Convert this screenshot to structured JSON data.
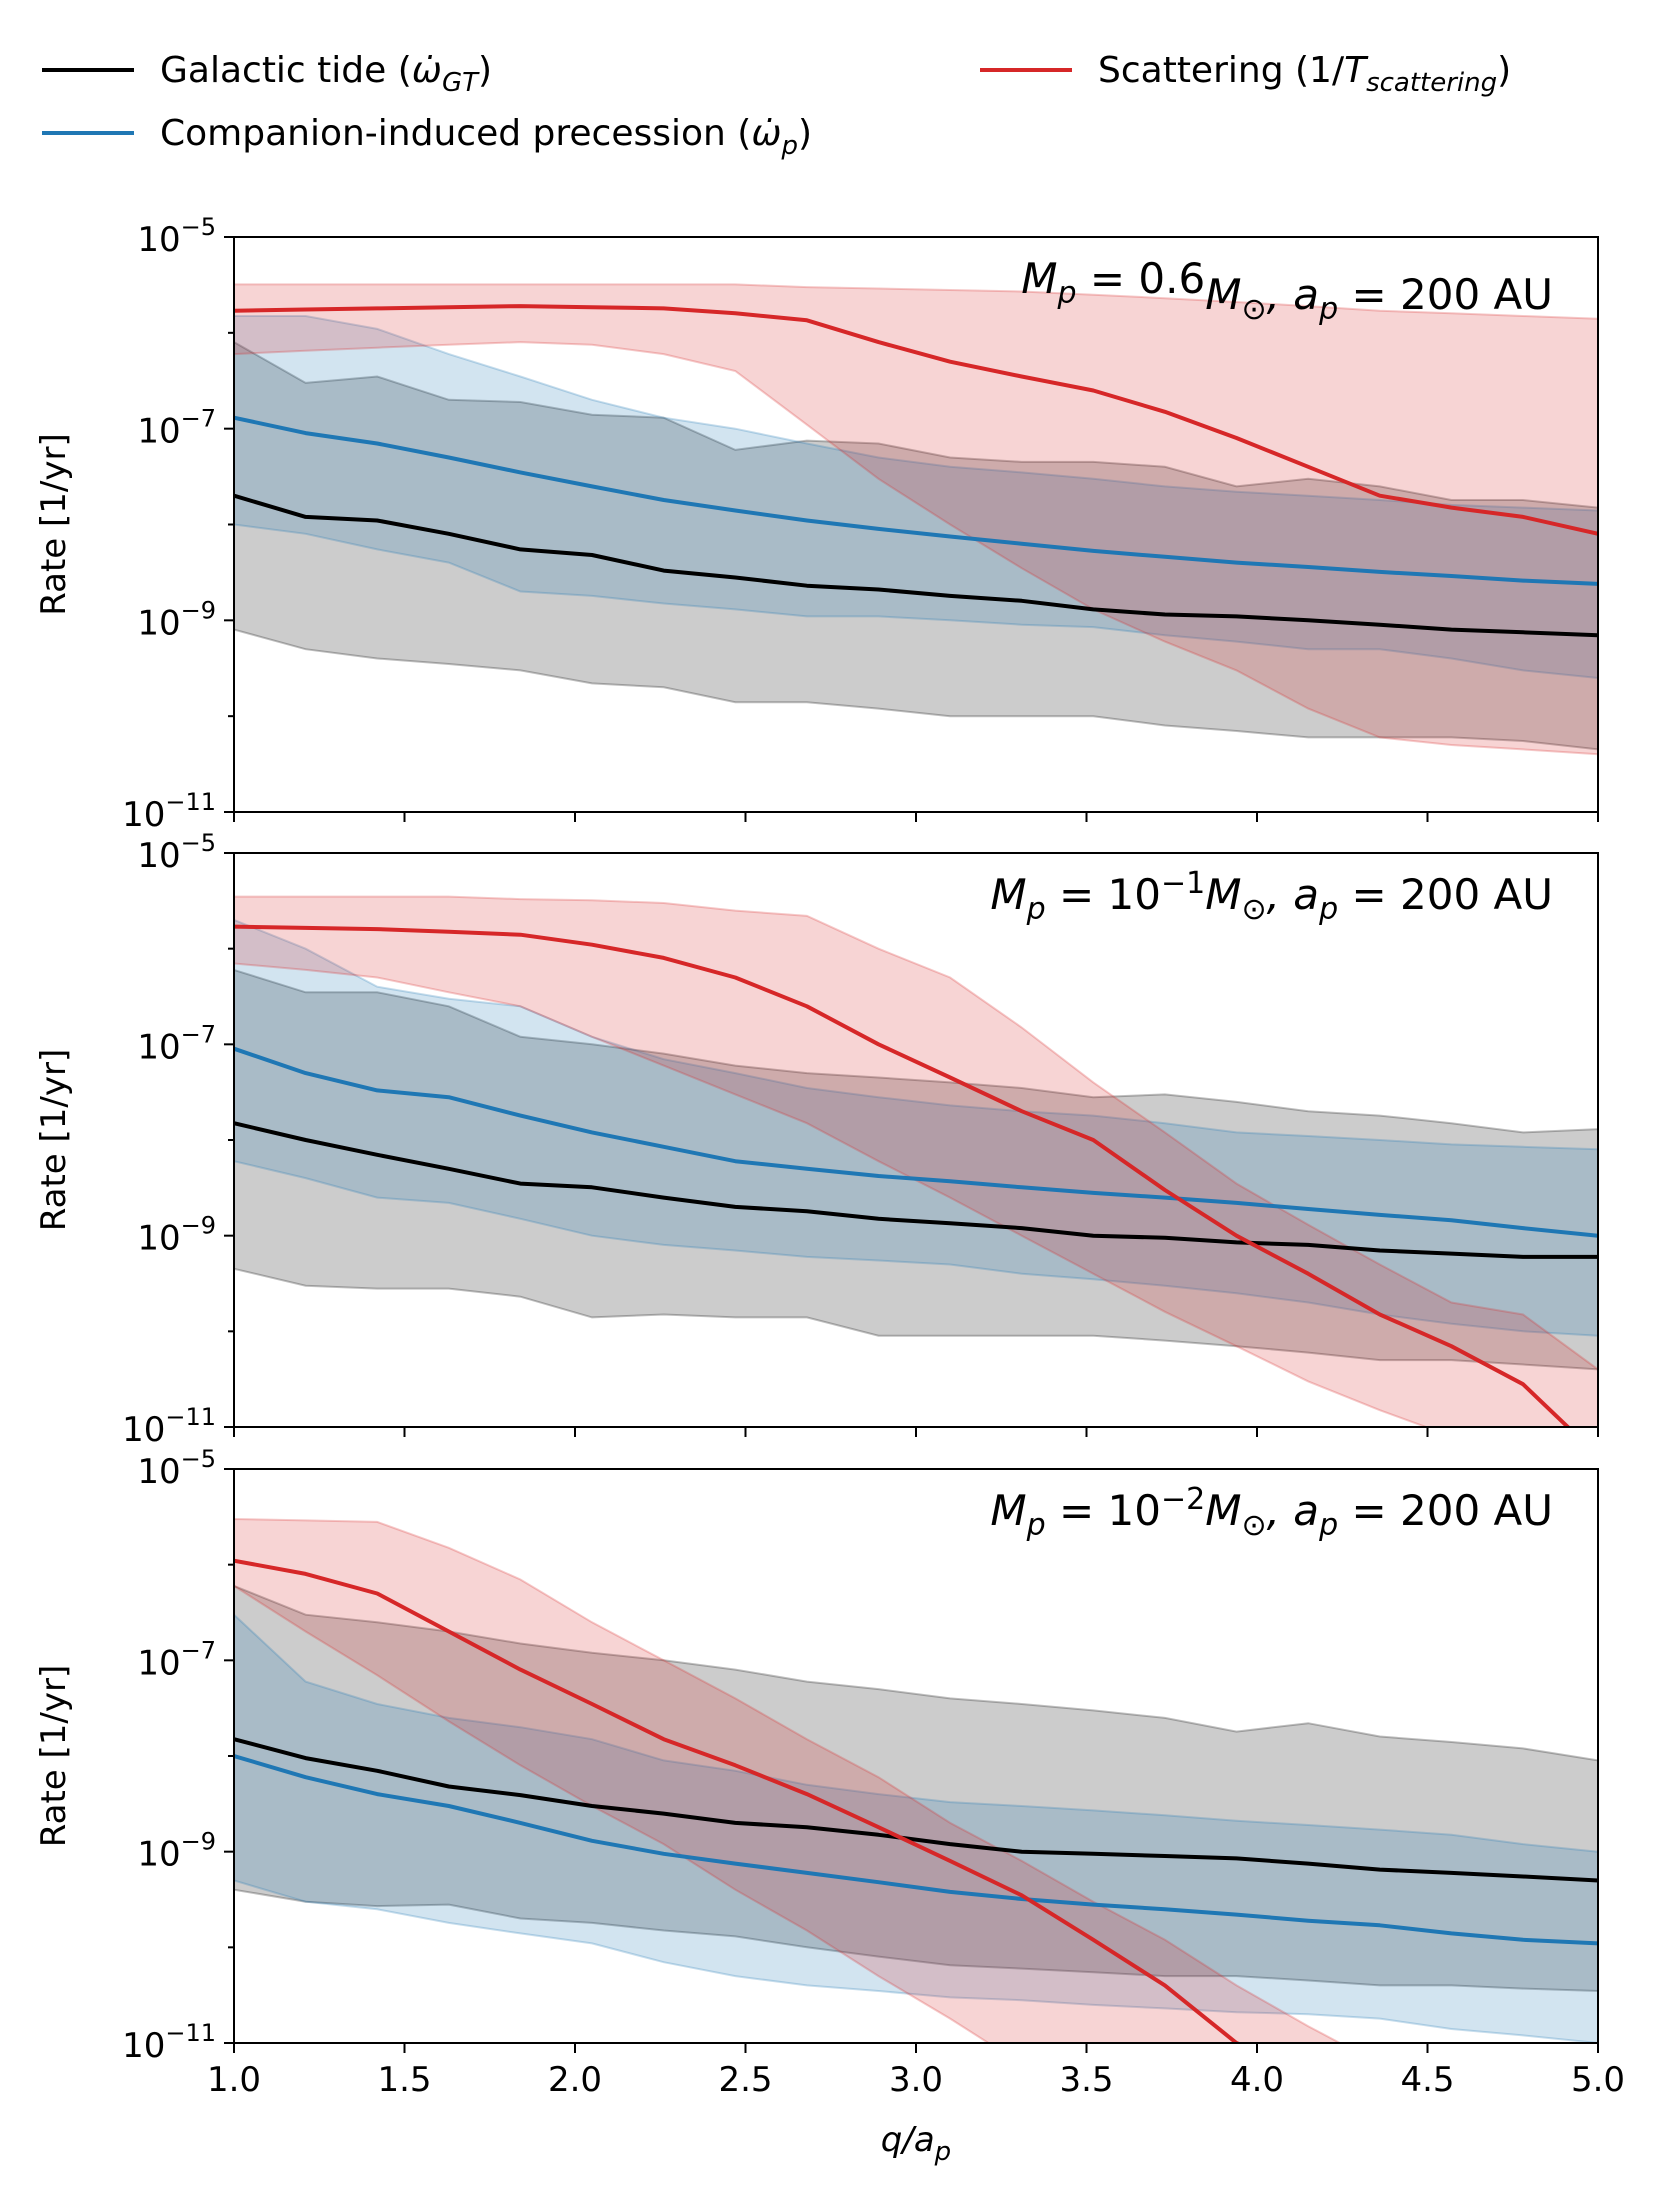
{
  "legend": [
    {
      "series": "gt",
      "base": "Galactic tide (",
      "sym": "ω̇",
      "sub": "GT",
      "close": ")",
      "color": "#000000"
    },
    {
      "series": "comp",
      "base": "Companion-induced precession (",
      "sym": "ω̇",
      "sub": "p",
      "close": ")",
      "color": "#1f77b4"
    },
    {
      "series": "scat",
      "base": "Scattering (1/",
      "sym": "T",
      "sub": "scattering",
      "close": ")",
      "color": "#d62728"
    }
  ],
  "colors": {
    "gt": "#000000",
    "comp": "#1f77b4",
    "scat": "#d62728"
  },
  "chart_data": [
    {
      "type": "line",
      "title": "",
      "annotation": {
        "prefix": "M",
        "prefix_sub": "p",
        "value": " = 0.6",
        "mass_sym": "M",
        "mass_sub": "⊙",
        "exp": "",
        "rest": ", a",
        "rest_sub": "p",
        "tail": " = 200 AU"
      },
      "xlabel": "",
      "ylabel": "Rate [1/yr]",
      "xlim": [
        1.0,
        5.0
      ],
      "ylim_log10": [
        -11,
        -5
      ],
      "x": [
        1.0,
        1.21,
        1.42,
        1.63,
        1.84,
        2.05,
        2.26,
        2.47,
        2.68,
        2.89,
        3.1,
        3.31,
        3.52,
        3.73,
        3.94,
        4.15,
        4.36,
        4.57,
        4.78,
        5.0
      ],
      "series": [
        {
          "name": "Galactic tide",
          "key": "gt",
          "median": [
            2e-08,
            1.2e-08,
            1.1e-08,
            8e-09,
            5.5e-09,
            4.8e-09,
            3.3e-09,
            2.8e-09,
            2.3e-09,
            2.1e-09,
            1.8e-09,
            1.6e-09,
            1.3e-09,
            1.15e-09,
            1.1e-09,
            1e-09,
            9e-10,
            8e-10,
            7.5e-10,
            7e-10
          ],
          "lower": [
            8e-10,
            5e-10,
            4e-10,
            3.5e-10,
            3e-10,
            2.2e-10,
            2e-10,
            1.4e-10,
            1.4e-10,
            1.2e-10,
            1e-10,
            1e-10,
            1e-10,
            8e-11,
            7e-11,
            6e-11,
            6e-11,
            6e-11,
            5.5e-11,
            4.5e-11
          ],
          "upper": [
            8e-07,
            3e-07,
            3.5e-07,
            2e-07,
            1.9e-07,
            1.4e-07,
            1.3e-07,
            6e-08,
            7.5e-08,
            7e-08,
            5e-08,
            4.5e-08,
            4.5e-08,
            4e-08,
            2.5e-08,
            3e-08,
            2.5e-08,
            1.8e-08,
            1.8e-08,
            1.5e-08
          ]
        },
        {
          "name": "Companion-induced precession",
          "key": "comp",
          "median": [
            1.3e-07,
            9e-08,
            7e-08,
            5e-08,
            3.5e-08,
            2.5e-08,
            1.8e-08,
            1.4e-08,
            1.1e-08,
            9e-09,
            7.5e-09,
            6.3e-09,
            5.3e-09,
            4.6e-09,
            4e-09,
            3.6e-09,
            3.2e-09,
            2.9e-09,
            2.6e-09,
            2.4e-09
          ],
          "lower": [
            1e-08,
            8e-09,
            5.5e-09,
            4e-09,
            2e-09,
            1.8e-09,
            1.5e-09,
            1.3e-09,
            1.1e-09,
            1.1e-09,
            1e-09,
            9e-10,
            8.5e-10,
            7e-10,
            6e-10,
            5e-10,
            5e-10,
            4e-10,
            3e-10,
            2.5e-10
          ],
          "upper": [
            1.5e-06,
            1.5e-06,
            1.1e-06,
            6e-07,
            3.5e-07,
            2e-07,
            1.3e-07,
            1e-07,
            7e-08,
            5e-08,
            4e-08,
            3.5e-08,
            3e-08,
            2.5e-08,
            2.2e-08,
            2e-08,
            1.8e-08,
            1.6e-08,
            1.5e-08,
            1.4e-08
          ]
        },
        {
          "name": "Scattering",
          "key": "scat",
          "median": [
            1.7e-06,
            1.75e-06,
            1.8e-06,
            1.85e-06,
            1.9e-06,
            1.85e-06,
            1.8e-06,
            1.6e-06,
            1.35e-06,
            8e-07,
            5e-07,
            3.5e-07,
            2.5e-07,
            1.5e-07,
            8e-08,
            4e-08,
            2e-08,
            1.5e-08,
            1.2e-08,
            8e-09
          ],
          "lower": [
            6e-07,
            6.5e-07,
            7e-07,
            7.5e-07,
            8e-07,
            7.5e-07,
            6e-07,
            4e-07,
            1.1e-07,
            3e-08,
            1e-08,
            3.5e-09,
            1.3e-09,
            6e-10,
            3e-10,
            1.2e-10,
            6e-11,
            5e-11,
            4.5e-11,
            4e-11
          ],
          "upper": [
            3.2e-06,
            3.2e-06,
            3.2e-06,
            3.2e-06,
            3.2e-06,
            3.2e-06,
            3.2e-06,
            3.2e-06,
            3e-06,
            2.9e-06,
            2.8e-06,
            2.7e-06,
            2.5e-06,
            2.3e-06,
            2.1e-06,
            1.9e-06,
            1.7e-06,
            1.6e-06,
            1.5e-06,
            1.4e-06
          ]
        }
      ]
    },
    {
      "type": "line",
      "title": "",
      "annotation": {
        "prefix": "M",
        "prefix_sub": "p",
        "value": " = 10",
        "mass_sym": "M",
        "mass_sub": "⊙",
        "exp": "−1",
        "rest": ", a",
        "rest_sub": "p",
        "tail": " = 200 AU"
      },
      "xlabel": "",
      "ylabel": "Rate [1/yr]",
      "xlim": [
        1.0,
        5.0
      ],
      "ylim_log10": [
        -11,
        -5
      ],
      "x": [
        1.0,
        1.21,
        1.42,
        1.63,
        1.84,
        2.05,
        2.26,
        2.47,
        2.68,
        2.89,
        3.1,
        3.31,
        3.52,
        3.73,
        3.94,
        4.15,
        4.36,
        4.57,
        4.78,
        5.0
      ],
      "series": [
        {
          "name": "Galactic tide",
          "key": "gt",
          "median": [
            1.5e-08,
            1e-08,
            7e-09,
            5e-09,
            3.5e-09,
            3.2e-09,
            2.5e-09,
            2e-09,
            1.8e-09,
            1.5e-09,
            1.35e-09,
            1.2e-09,
            1e-09,
            9.5e-10,
            8.5e-10,
            8e-10,
            7e-10,
            6.5e-10,
            6e-10,
            6e-10
          ],
          "lower": [
            4.5e-10,
            3e-10,
            2.8e-10,
            2.8e-10,
            2.3e-10,
            1.4e-10,
            1.5e-10,
            1.4e-10,
            1.4e-10,
            9e-11,
            9e-11,
            9e-11,
            9e-11,
            8e-11,
            7e-11,
            6e-11,
            5e-11,
            5e-11,
            4.5e-11,
            4e-11
          ],
          "upper": [
            6e-07,
            3.5e-07,
            3.5e-07,
            2.5e-07,
            1.2e-07,
            1e-07,
            8e-08,
            6e-08,
            5e-08,
            4.5e-08,
            4e-08,
            3.5e-08,
            2.8e-08,
            3e-08,
            2.5e-08,
            2e-08,
            1.8e-08,
            1.5e-08,
            1.2e-08,
            1.3e-08
          ]
        },
        {
          "name": "Companion-induced precession",
          "key": "comp",
          "median": [
            9e-08,
            5e-08,
            3.3e-08,
            2.8e-08,
            1.8e-08,
            1.2e-08,
            8.5e-09,
            6e-09,
            5e-09,
            4.2e-09,
            3.7e-09,
            3.2e-09,
            2.8e-09,
            2.5e-09,
            2.2e-09,
            1.9e-09,
            1.65e-09,
            1.45e-09,
            1.2e-09,
            1e-09
          ],
          "lower": [
            6e-09,
            4e-09,
            2.5e-09,
            2.2e-09,
            1.5e-09,
            1e-09,
            8e-10,
            7e-10,
            6e-10,
            5.5e-10,
            5e-10,
            4e-10,
            3.5e-10,
            3e-10,
            2.5e-10,
            2e-10,
            1.5e-10,
            1.2e-10,
            1e-10,
            9e-11
          ],
          "upper": [
            2e-06,
            1e-06,
            4e-07,
            3e-07,
            2.5e-07,
            1.2e-07,
            7e-08,
            5e-08,
            3.5e-08,
            2.8e-08,
            2.3e-08,
            2e-08,
            1.8e-08,
            1.5e-08,
            1.2e-08,
            1.1e-08,
            1e-08,
            9e-09,
            8.5e-09,
            8e-09
          ]
        },
        {
          "name": "Scattering",
          "key": "scat",
          "median": [
            1.7e-06,
            1.65e-06,
            1.6e-06,
            1.5e-06,
            1.4e-06,
            1.1e-06,
            8e-07,
            5e-07,
            2.5e-07,
            1e-07,
            4.5e-08,
            2e-08,
            1e-08,
            3e-09,
            1e-09,
            4e-10,
            1.5e-10,
            7e-11,
            2.8e-11,
            5e-12
          ],
          "lower": [
            7e-07,
            6e-07,
            5e-07,
            3.5e-07,
            2.5e-07,
            1.2e-07,
            6e-08,
            3e-08,
            1.5e-08,
            6e-09,
            2.5e-09,
            1e-09,
            4e-10,
            1.6e-10,
            7e-11,
            3e-11,
            1.5e-11,
            8e-12,
            5e-12,
            3e-12
          ],
          "upper": [
            3.5e-06,
            3.5e-06,
            3.5e-06,
            3.5e-06,
            3.3e-06,
            3.2e-06,
            3e-06,
            2.5e-06,
            2.2e-06,
            1e-06,
            5e-07,
            1.5e-07,
            4e-08,
            1.2e-08,
            3.5e-09,
            1.3e-09,
            5e-10,
            2e-10,
            1.5e-10,
            4e-11
          ]
        }
      ]
    },
    {
      "type": "line",
      "title": "",
      "annotation": {
        "prefix": "M",
        "prefix_sub": "p",
        "value": " = 10",
        "mass_sym": "M",
        "mass_sub": "⊙",
        "exp": "−2",
        "rest": ", a",
        "rest_sub": "p",
        "tail": " = 200 AU"
      },
      "xlabel": "q/a_p",
      "ylabel": "Rate [1/yr]",
      "xlim": [
        1.0,
        5.0
      ],
      "ylim_log10": [
        -11,
        -5
      ],
      "x": [
        1.0,
        1.21,
        1.42,
        1.63,
        1.84,
        2.05,
        2.26,
        2.47,
        2.68,
        2.89,
        3.1,
        3.31,
        3.52,
        3.73,
        3.94,
        4.15,
        4.36,
        4.57,
        4.78,
        5.0
      ],
      "series": [
        {
          "name": "Galactic tide",
          "key": "gt",
          "median": [
            1.5e-08,
            9.5e-09,
            7e-09,
            4.8e-09,
            3.9e-09,
            3e-09,
            2.5e-09,
            2e-09,
            1.8e-09,
            1.5e-09,
            1.2e-09,
            1e-09,
            9.5e-10,
            9e-10,
            8.5e-10,
            7.5e-10,
            6.5e-10,
            6e-10,
            5.5e-10,
            5e-10
          ],
          "lower": [
            4e-10,
            3e-10,
            2.7e-10,
            2.8e-10,
            2e-10,
            1.8e-10,
            1.5e-10,
            1.3e-10,
            1e-10,
            8e-11,
            6.5e-11,
            6e-11,
            5.5e-11,
            5e-11,
            5e-11,
            4.5e-11,
            4e-11,
            4e-11,
            3.7e-11,
            3.5e-11
          ],
          "upper": [
            6e-07,
            3e-07,
            2.5e-07,
            2e-07,
            1.5e-07,
            1.2e-07,
            1e-07,
            8e-08,
            6e-08,
            5e-08,
            4e-08,
            3.5e-08,
            3e-08,
            2.5e-08,
            1.8e-08,
            2.2e-08,
            1.6e-08,
            1.4e-08,
            1.2e-08,
            9e-09
          ]
        },
        {
          "name": "Companion-induced precession",
          "key": "comp",
          "median": [
            1e-08,
            6e-09,
            4e-09,
            3e-09,
            2e-09,
            1.3e-09,
            9.5e-10,
            7.5e-10,
            6e-10,
            4.8e-10,
            3.8e-10,
            3.2e-10,
            2.8e-10,
            2.5e-10,
            2.2e-10,
            1.9e-10,
            1.7e-10,
            1.4e-10,
            1.2e-10,
            1.1e-10
          ],
          "lower": [
            5e-10,
            3e-10,
            2.5e-10,
            1.8e-10,
            1.4e-10,
            1.1e-10,
            7e-11,
            5e-11,
            4e-11,
            3.5e-11,
            3e-11,
            2.8e-11,
            2.5e-11,
            2.3e-11,
            2.1e-11,
            2e-11,
            1.8e-11,
            1.4e-11,
            1.2e-11,
            1e-11
          ],
          "upper": [
            3e-07,
            6e-08,
            3.5e-08,
            2.5e-08,
            2e-08,
            1.5e-08,
            9e-09,
            7e-09,
            5e-09,
            4e-09,
            3.3e-09,
            3e-09,
            2.7e-09,
            2.4e-09,
            2.1e-09,
            1.9e-09,
            1.7e-09,
            1.5e-09,
            1.2e-09,
            1e-09
          ]
        },
        {
          "name": "Scattering",
          "key": "scat",
          "median": [
            1.1e-06,
            8e-07,
            5e-07,
            2e-07,
            8e-08,
            3.5e-08,
            1.5e-08,
            8e-09,
            4e-09,
            1.8e-09,
            8e-10,
            3.5e-10,
            1.2e-10,
            4e-11,
            1e-11,
            5e-12,
            3e-12,
            2e-12,
            1e-12,
            5e-13
          ],
          "lower": [
            6e-07,
            2e-07,
            7e-08,
            2.3e-08,
            8e-09,
            3e-09,
            1.2e-09,
            4e-10,
            1.5e-10,
            5e-11,
            1.8e-11,
            6e-12,
            3e-12,
            2e-12,
            1e-12,
            5e-13,
            3e-13,
            2e-13,
            1e-13,
            5e-14
          ],
          "upper": [
            3e-06,
            2.9e-06,
            2.8e-06,
            1.5e-06,
            7e-07,
            2.5e-07,
            1e-07,
            4e-08,
            1.5e-08,
            6e-09,
            2e-09,
            8e-10,
            3e-10,
            1.2e-10,
            4e-11,
            1.5e-11,
            6e-12,
            3e-12,
            2e-12,
            1e-12
          ]
        }
      ]
    }
  ]
}
